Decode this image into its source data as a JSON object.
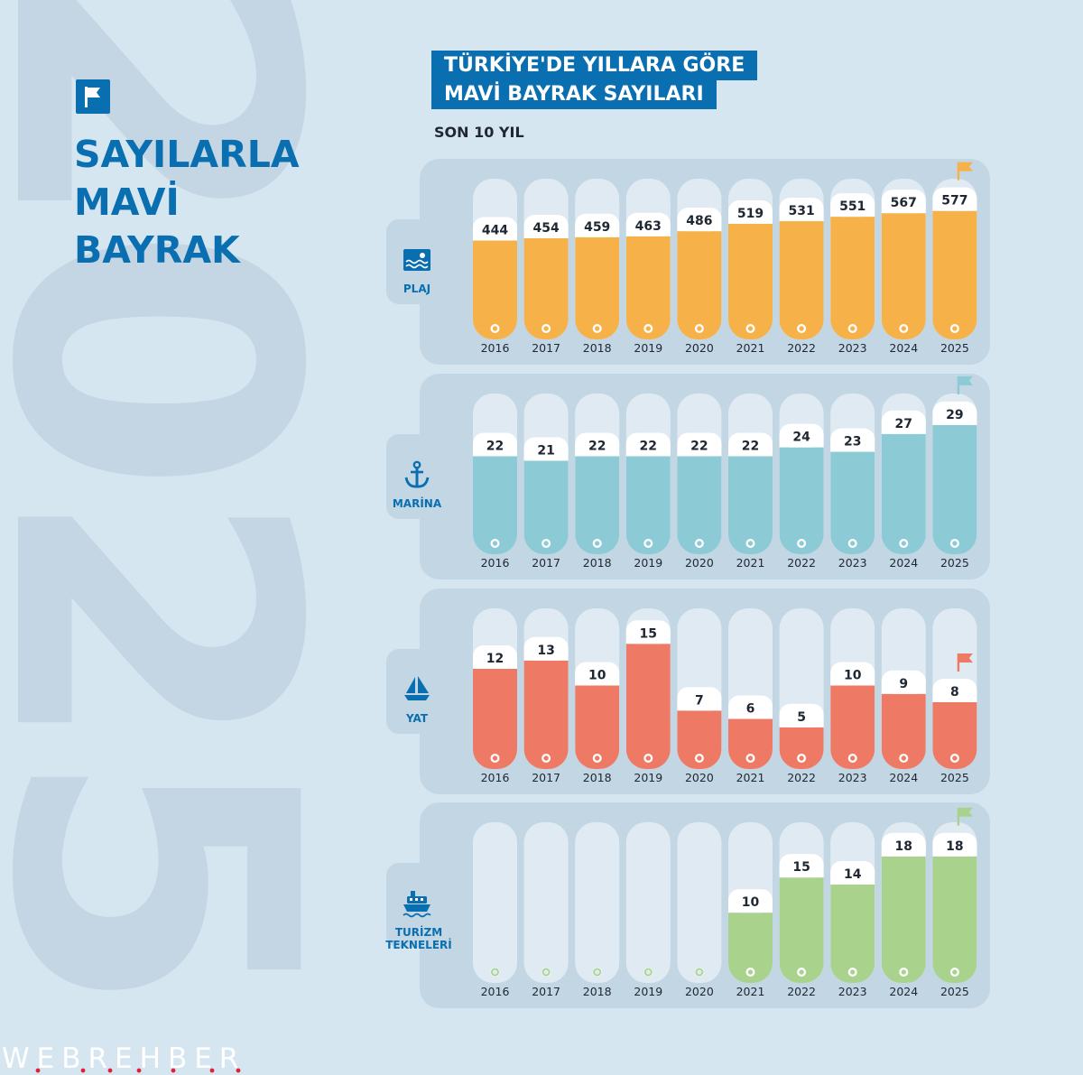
{
  "watermark": "2025",
  "headline": {
    "line1": "SAYILARLA",
    "line2": "MAVİ",
    "line3": "BAYRAK"
  },
  "title": {
    "line1": "TÜRKİYE'DE YILLARA GÖRE",
    "line2": "MAVİ BAYRAK SAYILARI"
  },
  "subtitle": "SON 10 YIL",
  "brand": "WEBREHBER",
  "colors": {
    "background": "#d6e6f1",
    "panel": "#c3d6e3",
    "track": "#dfeaf3",
    "headline": "#0a6fb0",
    "flag_icon": "#ffffff"
  },
  "chart_data": [
    {
      "type": "bar",
      "name": "PLAJ",
      "icon": "beach-icon",
      "color": "#f7b149",
      "categories": [
        "2016",
        "2017",
        "2018",
        "2019",
        "2020",
        "2021",
        "2022",
        "2023",
        "2024",
        "2025"
      ],
      "values": [
        444,
        454,
        459,
        463,
        486,
        519,
        531,
        551,
        567,
        577
      ],
      "labels": [
        "444",
        "454",
        "459",
        "463",
        "486",
        "519",
        "531",
        "551",
        "567",
        "577"
      ]
    },
    {
      "type": "bar",
      "name": "MARİNA",
      "icon": "anchor-icon",
      "color": "#8ccad6",
      "categories": [
        "2016",
        "2017",
        "2018",
        "2019",
        "2020",
        "2021",
        "2022",
        "2023",
        "2024",
        "2025"
      ],
      "values": [
        22,
        21,
        22,
        22,
        22,
        22,
        24,
        23,
        27,
        29
      ],
      "labels": [
        "22",
        "21",
        "22",
        "22",
        "22",
        "22",
        "24",
        "23",
        "27",
        "29"
      ]
    },
    {
      "type": "bar",
      "name": "YAT",
      "icon": "sailboat-icon",
      "color": "#ee7a66",
      "categories": [
        "2016",
        "2017",
        "2018",
        "2019",
        "2020",
        "2021",
        "2022",
        "2023",
        "2024",
        "2025"
      ],
      "values": [
        12,
        13,
        10,
        15,
        7,
        6,
        5,
        10,
        9,
        8
      ],
      "labels": [
        "12",
        "13",
        "10",
        "15",
        "7",
        "6",
        "5",
        "10",
        "9",
        "8"
      ]
    },
    {
      "type": "bar",
      "name": "TURİZM TEKNELERİ",
      "icon": "ferry-icon",
      "color": "#a9d38d",
      "categories": [
        "2016",
        "2017",
        "2018",
        "2019",
        "2020",
        "2021",
        "2022",
        "2023",
        "2024",
        "2025"
      ],
      "values": [
        0,
        0,
        0,
        0,
        0,
        10,
        15,
        14,
        18,
        18
      ],
      "labels": [
        "",
        "",
        "",
        "",
        "",
        "10",
        "15",
        "14",
        "18",
        "18"
      ]
    }
  ]
}
